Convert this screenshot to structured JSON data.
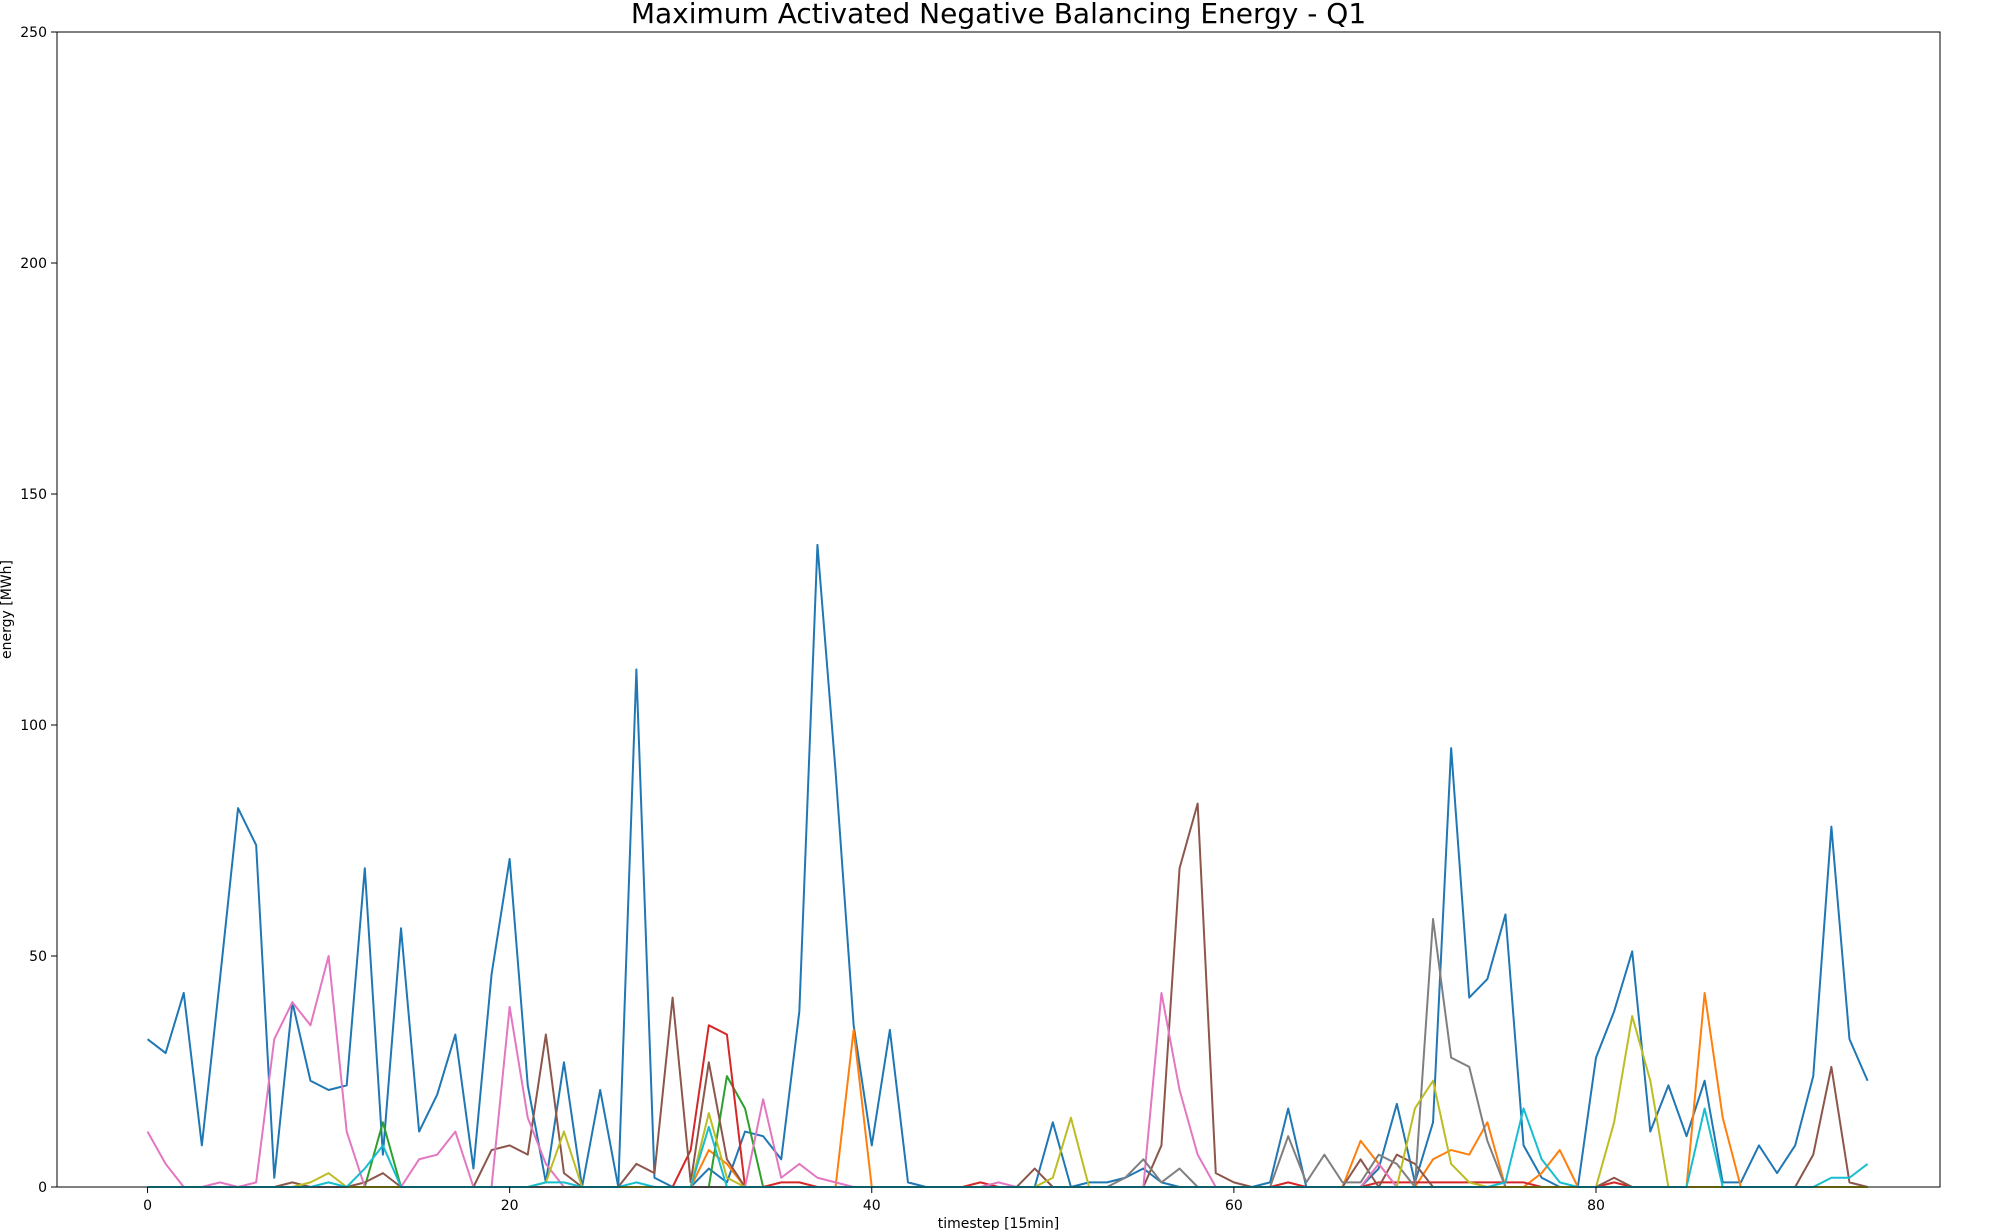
{
  "chart_data": {
    "type": "line",
    "title": "Maximum Activated Negative Balancing Energy - Q1",
    "xlabel": "timestep [15min]",
    "ylabel": "energy [MWh]",
    "xlim": [
      -5,
      99
    ],
    "ylim": [
      0,
      250
    ],
    "xticks": [
      0,
      20,
      40,
      60,
      80
    ],
    "yticks": [
      0,
      50,
      100,
      150,
      200,
      250
    ],
    "grid": false,
    "legend": "none",
    "x_start": 0,
    "series": [
      {
        "color": "#1f77b4",
        "values": [
          32,
          29,
          42,
          9,
          45,
          82,
          74,
          2,
          40,
          23,
          21,
          22,
          69,
          7,
          56,
          12,
          20,
          33,
          4,
          46,
          71,
          22,
          1,
          27,
          0,
          21,
          0,
          112,
          2,
          0,
          0,
          4,
          1,
          12,
          11,
          6,
          38,
          139,
          90,
          35,
          9,
          34,
          1,
          0,
          0,
          0,
          0,
          0,
          0,
          0,
          14,
          0,
          1,
          1,
          2,
          4,
          1,
          0,
          0,
          0,
          0,
          0,
          1,
          17,
          0,
          0,
          0,
          0,
          4,
          18,
          1,
          14,
          95,
          41,
          45,
          59,
          9,
          2,
          0,
          0,
          28,
          38,
          51,
          12,
          22,
          11,
          23,
          1,
          1,
          9,
          3,
          9,
          24,
          78,
          32,
          23
        ]
      },
      {
        "color": "#ff7f0e",
        "values": [
          0,
          0,
          0,
          0,
          0,
          0,
          0,
          0,
          0,
          0,
          0,
          0,
          0,
          0,
          0,
          0,
          0,
          0,
          0,
          0,
          0,
          0,
          0,
          0,
          0,
          0,
          0,
          0,
          0,
          0,
          0,
          8,
          5,
          0,
          0,
          0,
          0,
          0,
          0,
          34,
          0,
          0,
          0,
          0,
          0,
          0,
          0,
          0,
          0,
          0,
          0,
          0,
          0,
          0,
          0,
          0,
          0,
          0,
          0,
          0,
          0,
          0,
          0,
          0,
          0,
          0,
          0,
          10,
          5,
          0,
          0,
          6,
          8,
          7,
          14,
          0,
          0,
          3,
          8,
          0,
          0,
          0,
          0,
          0,
          0,
          0,
          42,
          15,
          0,
          0,
          0,
          0,
          0,
          0,
          0,
          0
        ]
      },
      {
        "color": "#2ca02c",
        "values": [
          0,
          0,
          0,
          0,
          0,
          0,
          0,
          0,
          0,
          0,
          0,
          0,
          0,
          14,
          0,
          0,
          0,
          0,
          0,
          0,
          0,
          0,
          0,
          0,
          0,
          0,
          0,
          0,
          0,
          0,
          0,
          0,
          24,
          17,
          0,
          0,
          0,
          0,
          0,
          0,
          0,
          0,
          0,
          0,
          0,
          0,
          0,
          0,
          0,
          0,
          0,
          0,
          0,
          0,
          0,
          0,
          0,
          0,
          0,
          0,
          0,
          0,
          0,
          0,
          0,
          0,
          0,
          0,
          0,
          0,
          0,
          0,
          0,
          0,
          0,
          0,
          0,
          0,
          0,
          0,
          0,
          0,
          0,
          0,
          0,
          0,
          0,
          0,
          0,
          0,
          0,
          0,
          0,
          0,
          0,
          0
        ]
      },
      {
        "color": "#d62728",
        "values": [
          0,
          0,
          0,
          0,
          0,
          0,
          0,
          0,
          0,
          0,
          0,
          0,
          0,
          0,
          0,
          0,
          0,
          0,
          0,
          0,
          0,
          0,
          0,
          0,
          0,
          0,
          0,
          0,
          0,
          0,
          8,
          35,
          33,
          0,
          0,
          1,
          1,
          0,
          0,
          0,
          0,
          0,
          0,
          0,
          0,
          0,
          1,
          0,
          0,
          0,
          0,
          0,
          0,
          0,
          0,
          0,
          0,
          0,
          0,
          0,
          0,
          0,
          0,
          1,
          0,
          0,
          0,
          0,
          1,
          1,
          1,
          1,
          1,
          1,
          1,
          1,
          1,
          0,
          0,
          0,
          0,
          1,
          0,
          0,
          0,
          0,
          0,
          0,
          0,
          0,
          0,
          0,
          0,
          0,
          0,
          0
        ]
      },
      {
        "color": "#8c564b",
        "values": [
          0,
          0,
          0,
          0,
          0,
          0,
          0,
          0,
          1,
          0,
          0,
          0,
          1,
          3,
          0,
          0,
          0,
          0,
          0,
          8,
          9,
          7,
          33,
          3,
          0,
          0,
          0,
          5,
          3,
          41,
          1,
          27,
          6,
          0,
          0,
          0,
          0,
          0,
          0,
          0,
          0,
          0,
          0,
          0,
          0,
          0,
          0,
          0,
          0,
          4,
          0,
          0,
          0,
          0,
          0,
          0,
          9,
          69,
          83,
          3,
          1,
          0,
          0,
          0,
          0,
          0,
          0,
          6,
          0,
          7,
          5,
          0,
          0,
          0,
          0,
          0,
          0,
          0,
          0,
          0,
          0,
          2,
          0,
          0,
          0,
          0,
          0,
          0,
          0,
          0,
          0,
          0,
          7,
          26,
          1,
          0
        ]
      },
      {
        "color": "#e377c2",
        "values": [
          12,
          5,
          0,
          0,
          1,
          0,
          1,
          32,
          40,
          35,
          50,
          12,
          0,
          0,
          0,
          6,
          7,
          12,
          0,
          0,
          39,
          15,
          5,
          0,
          0,
          0,
          0,
          0,
          0,
          0,
          0,
          0,
          0,
          0,
          19,
          2,
          5,
          2,
          1,
          0,
          0,
          0,
          0,
          0,
          0,
          0,
          0,
          1,
          0,
          0,
          0,
          0,
          0,
          0,
          0,
          0,
          42,
          21,
          7,
          0,
          0,
          0,
          0,
          0,
          0,
          0,
          0,
          0,
          5,
          0,
          0,
          0,
          0,
          0,
          0,
          0,
          0,
          0,
          0,
          0,
          0,
          0,
          0,
          0,
          0,
          0,
          0,
          0,
          0,
          0,
          0,
          0,
          0,
          0,
          0,
          0
        ]
      },
      {
        "color": "#7f7f7f",
        "values": [
          0,
          0,
          0,
          0,
          0,
          0,
          0,
          0,
          0,
          0,
          0,
          0,
          0,
          0,
          0,
          0,
          0,
          0,
          0,
          0,
          0,
          0,
          0,
          0,
          0,
          0,
          0,
          0,
          0,
          0,
          0,
          0,
          0,
          0,
          0,
          0,
          0,
          0,
          0,
          0,
          0,
          0,
          0,
          0,
          0,
          0,
          0,
          0,
          0,
          0,
          0,
          0,
          0,
          0,
          2,
          6,
          1,
          4,
          0,
          0,
          0,
          0,
          0,
          11,
          1,
          7,
          1,
          1,
          7,
          5,
          0,
          58,
          28,
          26,
          10,
          0,
          0,
          0,
          0,
          0,
          0,
          0,
          0,
          0,
          0,
          0,
          0,
          0,
          0,
          0,
          0,
          0,
          0,
          0,
          0,
          0
        ]
      },
      {
        "color": "#bcbd22",
        "values": [
          0,
          0,
          0,
          0,
          0,
          0,
          0,
          0,
          0,
          1,
          3,
          0,
          0,
          0,
          0,
          0,
          0,
          0,
          0,
          0,
          0,
          0,
          1,
          12,
          0,
          0,
          0,
          0,
          0,
          0,
          0,
          16,
          2,
          0,
          0,
          0,
          0,
          0,
          0,
          0,
          0,
          0,
          0,
          0,
          0,
          0,
          0,
          0,
          0,
          0,
          2,
          15,
          0,
          0,
          0,
          0,
          0,
          0,
          0,
          0,
          0,
          0,
          0,
          0,
          0,
          0,
          0,
          0,
          0,
          0,
          17,
          23,
          5,
          1,
          0,
          0,
          0,
          0,
          0,
          0,
          0,
          14,
          37,
          23,
          0,
          0,
          0,
          0,
          0,
          0,
          0,
          0,
          0,
          0,
          0,
          0
        ]
      },
      {
        "color": "#17becf",
        "values": [
          0,
          0,
          0,
          0,
          0,
          0,
          0,
          0,
          0,
          0,
          1,
          0,
          4,
          9,
          0,
          0,
          0,
          0,
          0,
          0,
          0,
          0,
          1,
          1,
          0,
          0,
          0,
          1,
          0,
          0,
          0,
          13,
          0,
          0,
          0,
          0,
          0,
          0,
          0,
          0,
          0,
          0,
          0,
          0,
          0,
          0,
          0,
          0,
          0,
          0,
          0,
          0,
          0,
          0,
          0,
          0,
          0,
          0,
          0,
          0,
          0,
          0,
          0,
          0,
          0,
          0,
          0,
          0,
          0,
          0,
          0,
          0,
          0,
          0,
          0,
          1,
          17,
          6,
          1,
          0,
          0,
          0,
          0,
          0,
          0,
          0,
          17,
          0,
          0,
          0,
          0,
          0,
          0,
          2,
          2,
          5
        ]
      }
    ]
  }
}
